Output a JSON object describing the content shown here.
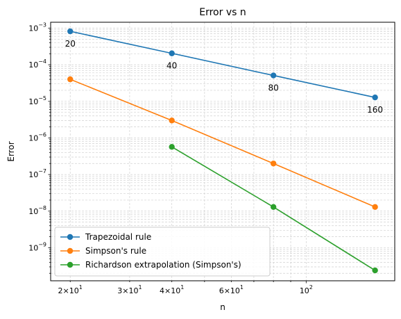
{
  "chart_data": {
    "type": "line",
    "title": "Error vs n",
    "xlabel": "n",
    "ylabel": "Error",
    "xscale": "log",
    "yscale": "log",
    "xlim": [
      17.5,
      183
    ],
    "ylim": [
      1.25e-10,
      0.00145
    ],
    "grid": "on (major and minor, dashed)",
    "legend_position": "lower-left",
    "x_tick_labels": [
      {
        "base": "2",
        "mult": "×",
        "ten": "10",
        "exp": "1",
        "value": 20
      },
      {
        "base": "3",
        "mult": "×",
        "ten": "10",
        "exp": "1",
        "value": 30
      },
      {
        "base": "4",
        "mult": "×",
        "ten": "10",
        "exp": "1",
        "value": 40
      },
      {
        "base": "6",
        "mult": "×",
        "ten": "10",
        "exp": "1",
        "value": 60
      },
      {
        "base": "",
        "mult": "",
        "ten": "10",
        "exp": "2",
        "value": 100
      }
    ],
    "y_tick_labels": [
      {
        "ten": "10",
        "exp": "−3",
        "value": 0.001
      },
      {
        "ten": "10",
        "exp": "−4",
        "value": 0.0001
      },
      {
        "ten": "10",
        "exp": "−5",
        "value": 1e-05
      },
      {
        "ten": "10",
        "exp": "−6",
        "value": 1e-06
      },
      {
        "ten": "10",
        "exp": "−7",
        "value": 1e-07
      },
      {
        "ten": "10",
        "exp": "−8",
        "value": 1e-08
      },
      {
        "ten": "10",
        "exp": "−9",
        "value": 1e-09
      }
    ],
    "series": [
      {
        "name": "Trapezoidal rule",
        "color": "#1f77b4",
        "x": [
          20,
          40,
          80,
          160
        ],
        "y": [
          0.00082,
          0.000205,
          5.1e-05,
          1.28e-05
        ]
      },
      {
        "name": "Simpson's rule",
        "color": "#ff7f0e",
        "x": [
          20,
          40,
          80,
          160
        ],
        "y": [
          4e-05,
          3e-06,
          2e-07,
          1.3e-08
        ]
      },
      {
        "name": "Richardson extrapolation (Simpson's)",
        "color": "#2ca02c",
        "x": [
          40,
          80,
          160
        ],
        "y": [
          5.7e-07,
          1.3e-08,
          2.4e-10
        ]
      }
    ],
    "annotations": [
      {
        "text": "20",
        "x": 20,
        "y": 0.00082
      },
      {
        "text": "40",
        "x": 40,
        "y": 0.000205
      },
      {
        "text": "80",
        "x": 80,
        "y": 5.1e-05
      },
      {
        "text": "160",
        "x": 160,
        "y": 1.28e-05
      }
    ]
  }
}
